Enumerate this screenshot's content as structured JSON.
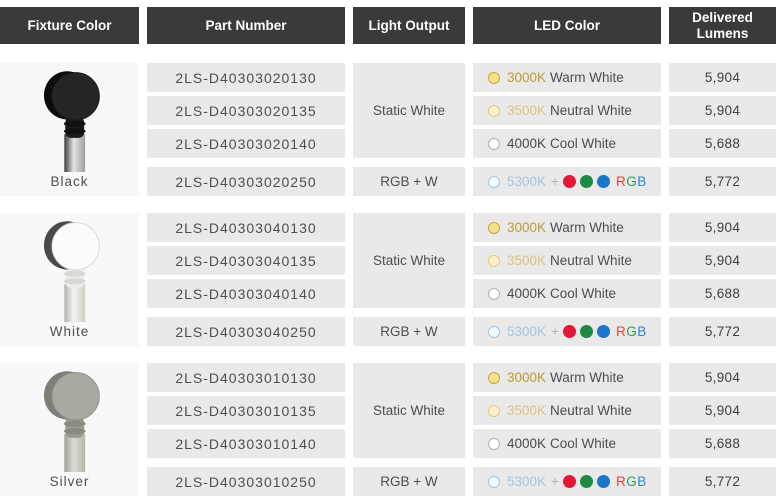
{
  "colors": {
    "header_bg": "#3a3a38",
    "cell_bg": "#e9e9e9",
    "fixture_bg": "#f8f8f8",
    "plus_gray": "#b3b3b3"
  },
  "headers": {
    "fixture_color": "Fixture Color",
    "part_number": "Part Number",
    "light_output": "Light Output",
    "led_color": "LED Color",
    "delivered_lumens": "Delivered Lumens"
  },
  "light_outputs": {
    "static": "Static White",
    "rgbw": "RGB + W"
  },
  "led_rows": [
    {
      "kelvin": "3000K",
      "kelvin_color": "#bd9a33",
      "swatch_fill": "#f7e387",
      "swatch_stroke": "#c8a544",
      "label": "Warm White",
      "rgb": false
    },
    {
      "kelvin": "3500K",
      "kelvin_color": "#dcc183",
      "swatch_fill": "#fbf2cb",
      "swatch_stroke": "#ddc88b",
      "label": "Neutral White",
      "rgb": false
    },
    {
      "kelvin": "4000K",
      "kelvin_color": "#4a4a4a",
      "swatch_fill": "#ffffff",
      "swatch_stroke": "#b2b2b2",
      "label": "Cool White",
      "rgb": false
    },
    {
      "kelvin": "5300K",
      "kelvin_color": "#a5c5de",
      "swatch_fill": "#f2f8fc",
      "swatch_stroke": "#a5c5de",
      "label": "",
      "rgb": true
    }
  ],
  "rgb": {
    "plus": "+",
    "dots": [
      "#e31837",
      "#1c8a44",
      "#1b75cb"
    ],
    "letters": [
      {
        "char": "R",
        "color": "#e2453c"
      },
      {
        "char": "G",
        "color": "#2c9e57"
      },
      {
        "char": "B",
        "color": "#2f86d2"
      }
    ]
  },
  "groups": [
    {
      "name": "Black",
      "fixture": {
        "head": "#252525",
        "head_stroke": "#1a1a1a",
        "rim": "#0c0c0c",
        "knuckle": "#1b1b1b",
        "ring": "#101010",
        "pole_dark": "#3c3c3c",
        "pole_light": "#e4e4e4",
        "pole_mid": "#9e9e9e"
      },
      "rows": [
        {
          "part": "2LS-D40303020130",
          "lumens": "5,904"
        },
        {
          "part": "2LS-D40303020135",
          "lumens": "5,904"
        },
        {
          "part": "2LS-D40303020140",
          "lumens": "5,688"
        },
        {
          "part": "2LS-D40303020250",
          "lumens": "5,772"
        }
      ]
    },
    {
      "name": "White",
      "fixture": {
        "head": "#fbfbfb",
        "head_stroke": "#d8d8d8",
        "rim": "#4a4a4a",
        "knuckle": "#ececea",
        "ring": "#d8d8d4",
        "pole_dark": "#b2b2a8",
        "pole_light": "#f4f4f0",
        "pole_mid": "#cfcfc7"
      },
      "rows": [
        {
          "part": "2LS-D40303040130",
          "lumens": "5,904"
        },
        {
          "part": "2LS-D40303040135",
          "lumens": "5,904"
        },
        {
          "part": "2LS-D40303040140",
          "lumens": "5,688"
        },
        {
          "part": "2LS-D40303040250",
          "lumens": "5,772"
        }
      ]
    },
    {
      "name": "Silver",
      "fixture": {
        "head": "#a9a9a1",
        "head_stroke": "#90908a",
        "rim": "#7f7f77",
        "knuckle": "#9b9b93",
        "ring": "#8a8a82",
        "pole_dark": "#a0a098",
        "pole_light": "#dcdcd4",
        "pole_mid": "#b5b5ad"
      },
      "rows": [
        {
          "part": "2LS-D40303010130",
          "lumens": "5,904"
        },
        {
          "part": "2LS-D40303010135",
          "lumens": "5,904"
        },
        {
          "part": "2LS-D40303010140",
          "lumens": "5,688"
        },
        {
          "part": "2LS-D40303010250",
          "lumens": "5,772"
        }
      ]
    }
  ]
}
